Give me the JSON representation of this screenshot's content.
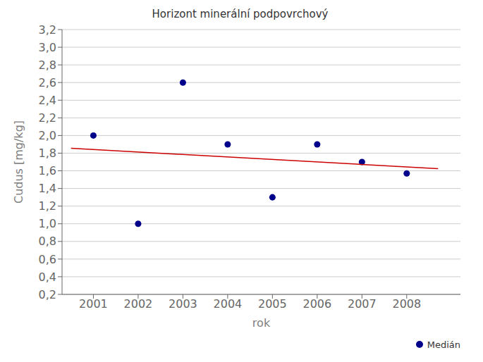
{
  "chart_data": {
    "type": "scatter",
    "title": "Horizont minerální podpovrchový",
    "x_label": "rok",
    "y_label": "Cudus [mg/kg]",
    "series": [
      {
        "name": "Medián",
        "type": "scatter",
        "color": "#00008B",
        "marker": "circle",
        "x": [
          2001,
          2002,
          2003,
          2004,
          2005,
          2006,
          2007,
          2008
        ],
        "values": [
          2.0,
          1.0,
          2.6,
          1.9,
          1.3,
          1.9,
          1.7,
          1.57
        ]
      },
      {
        "type": "line",
        "color": "#CC0000",
        "x": [
          2000.5,
          2008.7
        ],
        "values": [
          1.855,
          1.625
        ]
      }
    ],
    "xlim": [
      2000.3,
      2009.2
    ],
    "xticks": [
      2001,
      2002,
      2003,
      2004,
      2005,
      2006,
      2007,
      2008
    ],
    "ylim": [
      0.2,
      3.2
    ],
    "yticks": [
      {
        "value": 0.2,
        "label": "0,2"
      },
      {
        "value": 0.4,
        "label": "0,4"
      },
      {
        "value": 0.6,
        "label": "0,6"
      },
      {
        "value": 0.8,
        "label": "0,8"
      },
      {
        "value": 1.0,
        "label": "1,0"
      },
      {
        "value": 1.2,
        "label": "1,2"
      },
      {
        "value": 1.4,
        "label": "1,4"
      },
      {
        "value": 1.6,
        "label": "1,6"
      },
      {
        "value": 1.8,
        "label": "1,8"
      },
      {
        "value": 2.0,
        "label": "2,0"
      },
      {
        "value": 2.2,
        "label": "2,2"
      },
      {
        "value": 2.4,
        "label": "2,4"
      },
      {
        "value": 2.6,
        "label": "2,6"
      },
      {
        "value": 2.8,
        "label": "2,8"
      },
      {
        "value": 3.0,
        "label": "3,0"
      },
      {
        "value": 3.2,
        "label": "3,2"
      }
    ],
    "grid": "y",
    "legend": "lower right"
  }
}
